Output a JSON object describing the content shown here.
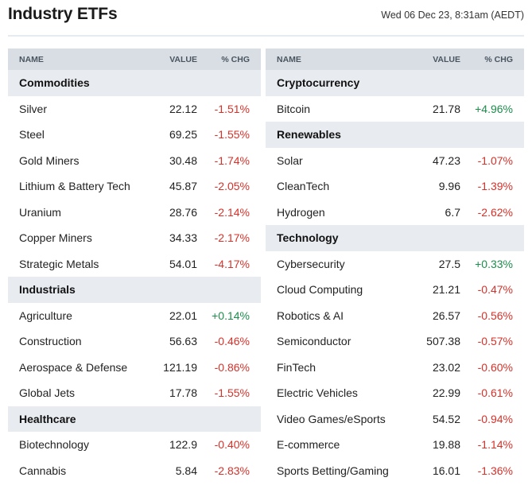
{
  "header": {
    "title": "Industry ETFs",
    "timestamp": "Wed 06 Dec 23, 8:31am (AEDT)"
  },
  "columns": {
    "name": "NAME",
    "value": "VALUE",
    "chg": "% CHG"
  },
  "colors": {
    "negative": "#d6322a",
    "positive": "#1e8c4c",
    "header_bg": "#d9dee4",
    "section_bg": "#e8ecf0"
  },
  "left_panel": {
    "rows": [
      {
        "type": "section",
        "name": "Commodities"
      },
      {
        "type": "item",
        "name": "Silver",
        "value": "22.12",
        "chg": "-1.51%",
        "dir": "neg"
      },
      {
        "type": "item",
        "name": "Steel",
        "value": "69.25",
        "chg": "-1.55%",
        "dir": "neg"
      },
      {
        "type": "item",
        "name": "Gold Miners",
        "value": "30.48",
        "chg": "-1.74%",
        "dir": "neg"
      },
      {
        "type": "item",
        "name": "Lithium & Battery Tech",
        "value": "45.87",
        "chg": "-2.05%",
        "dir": "neg"
      },
      {
        "type": "item",
        "name": "Uranium",
        "value": "28.76",
        "chg": "-2.14%",
        "dir": "neg"
      },
      {
        "type": "item",
        "name": "Copper Miners",
        "value": "34.33",
        "chg": "-2.17%",
        "dir": "neg"
      },
      {
        "type": "item",
        "name": "Strategic Metals",
        "value": "54.01",
        "chg": "-4.17%",
        "dir": "neg"
      },
      {
        "type": "section",
        "name": "Industrials"
      },
      {
        "type": "item",
        "name": "Agriculture",
        "value": "22.01",
        "chg": "+0.14%",
        "dir": "pos"
      },
      {
        "type": "item",
        "name": "Construction",
        "value": "56.63",
        "chg": "-0.46%",
        "dir": "neg"
      },
      {
        "type": "item",
        "name": "Aerospace & Defense",
        "value": "121.19",
        "chg": "-0.86%",
        "dir": "neg"
      },
      {
        "type": "item",
        "name": "Global Jets",
        "value": "17.78",
        "chg": "-1.55%",
        "dir": "neg"
      },
      {
        "type": "section",
        "name": "Healthcare"
      },
      {
        "type": "item",
        "name": "Biotechnology",
        "value": "122.9",
        "chg": "-0.40%",
        "dir": "neg"
      },
      {
        "type": "item",
        "name": "Cannabis",
        "value": "5.84",
        "chg": "-2.83%",
        "dir": "neg"
      }
    ]
  },
  "right_panel": {
    "rows": [
      {
        "type": "section",
        "name": "Cryptocurrency"
      },
      {
        "type": "item",
        "name": "Bitcoin",
        "value": "21.78",
        "chg": "+4.96%",
        "dir": "pos"
      },
      {
        "type": "section",
        "name": "Renewables"
      },
      {
        "type": "item",
        "name": "Solar",
        "value": "47.23",
        "chg": "-1.07%",
        "dir": "neg"
      },
      {
        "type": "item",
        "name": "CleanTech",
        "value": "9.96",
        "chg": "-1.39%",
        "dir": "neg"
      },
      {
        "type": "item",
        "name": "Hydrogen",
        "value": "6.7",
        "chg": "-2.62%",
        "dir": "neg"
      },
      {
        "type": "section",
        "name": "Technology"
      },
      {
        "type": "item",
        "name": "Cybersecurity",
        "value": "27.5",
        "chg": "+0.33%",
        "dir": "pos"
      },
      {
        "type": "item",
        "name": "Cloud Computing",
        "value": "21.21",
        "chg": "-0.47%",
        "dir": "neg"
      },
      {
        "type": "item",
        "name": "Robotics & AI",
        "value": "26.57",
        "chg": "-0.56%",
        "dir": "neg"
      },
      {
        "type": "item",
        "name": "Semiconductor",
        "value": "507.38",
        "chg": "-0.57%",
        "dir": "neg"
      },
      {
        "type": "item",
        "name": "FinTech",
        "value": "23.02",
        "chg": "-0.60%",
        "dir": "neg"
      },
      {
        "type": "item",
        "name": "Electric Vehicles",
        "value": "22.99",
        "chg": "-0.61%",
        "dir": "neg"
      },
      {
        "type": "item",
        "name": "Video Games/eSports",
        "value": "54.52",
        "chg": "-0.94%",
        "dir": "neg"
      },
      {
        "type": "item",
        "name": "E-commerce",
        "value": "19.88",
        "chg": "-1.14%",
        "dir": "neg"
      },
      {
        "type": "item",
        "name": "Sports Betting/Gaming",
        "value": "16.01",
        "chg": "-1.36%",
        "dir": "neg"
      }
    ]
  }
}
